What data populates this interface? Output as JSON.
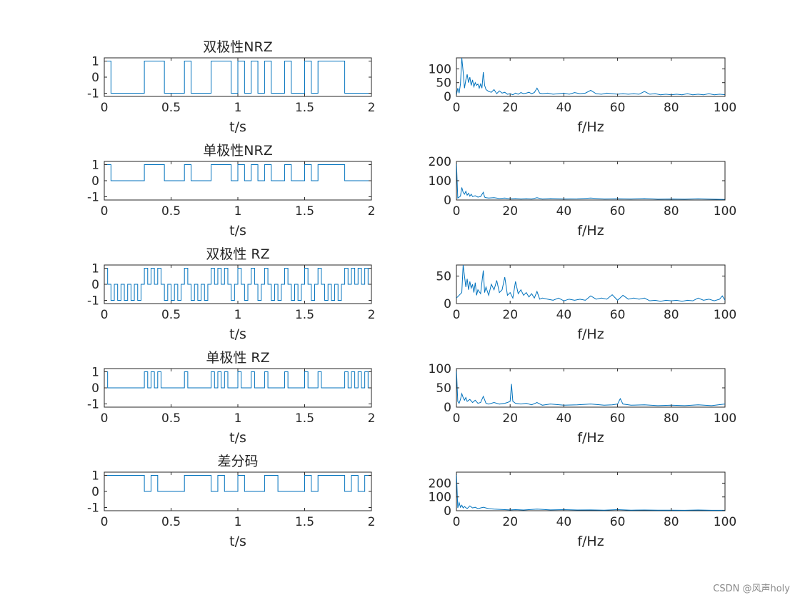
{
  "watermark": "CSDN @风声holy",
  "colors": {
    "trace": "#0072bd",
    "axis": "#262626",
    "background": "#ffffff"
  },
  "time_axis": {
    "xlabel": "t/s",
    "xlim": [
      0,
      2
    ],
    "xticks": [
      "0",
      "0.5",
      "1",
      "1.5",
      "2"
    ],
    "x": [
      0,
      0.5,
      1,
      1.5,
      2
    ]
  },
  "freq_axis": {
    "xlabel": "f/Hz",
    "xlim": [
      0,
      100
    ],
    "xticks": [
      "0",
      "20",
      "40",
      "60",
      "80",
      "100"
    ],
    "x": [
      0,
      20,
      40,
      60,
      80,
      100
    ]
  },
  "chart_data": [
    {
      "type": "line",
      "id": "bipolar-nrz-time",
      "title": "双极性NRZ",
      "xlabel": "t/s",
      "xlim": [
        0,
        2
      ],
      "ylim": [
        -1.2,
        1.2
      ],
      "yticks": [
        -1,
        0,
        1
      ],
      "ytick_labels": [
        "-1",
        "0",
        "1"
      ],
      "step_x": [
        0,
        0.05,
        0.3,
        0.45,
        0.6,
        0.65,
        0.8,
        0.95,
        1.0,
        1.05,
        1.1,
        1.15,
        1.2,
        1.25,
        1.35,
        1.4,
        1.5,
        1.55,
        1.6,
        1.8,
        2.0
      ],
      "step_y": [
        1,
        -1,
        1,
        -1,
        1,
        -1,
        1,
        -1,
        1,
        -1,
        1,
        -1,
        1,
        -1,
        1,
        -1,
        1,
        -1,
        1,
        -1,
        1
      ]
    },
    {
      "type": "line",
      "id": "bipolar-nrz-spectrum",
      "title": "",
      "xlabel": "f/Hz",
      "xlim": [
        0,
        100
      ],
      "ylim": [
        0,
        140
      ],
      "yticks": [
        0,
        50,
        100
      ],
      "ytick_labels": [
        "0",
        "50",
        "100"
      ],
      "x": [
        0,
        0.5,
        1,
        1.5,
        2,
        2.5,
        3,
        3.5,
        4,
        4.5,
        5,
        5.5,
        6,
        6.5,
        7,
        7.5,
        8,
        8.5,
        9,
        9.5,
        10,
        10.5,
        11,
        12,
        13,
        14,
        15,
        16,
        17,
        18,
        19,
        20,
        21,
        22,
        23,
        24,
        25,
        26,
        27,
        28,
        29,
        30,
        31,
        32,
        34,
        36,
        38,
        40,
        42,
        44,
        46,
        48,
        50,
        52,
        54,
        56,
        58,
        60,
        62,
        64,
        66,
        68,
        70,
        72,
        74,
        76,
        78,
        80,
        82,
        84,
        86,
        88,
        90,
        92,
        94,
        96,
        98,
        100
      ],
      "y": [
        5,
        30,
        12,
        45,
        140,
        90,
        30,
        60,
        80,
        50,
        70,
        40,
        60,
        35,
        50,
        40,
        45,
        30,
        45,
        30,
        88,
        40,
        25,
        18,
        15,
        25,
        10,
        20,
        12,
        15,
        8,
        10,
        6,
        12,
        8,
        14,
        10,
        12,
        15,
        10,
        14,
        30,
        12,
        10,
        12,
        8,
        10,
        12,
        8,
        14,
        10,
        12,
        22,
        10,
        8,
        12,
        10,
        8,
        10,
        8,
        10,
        8,
        18,
        8,
        10,
        6,
        8,
        6,
        8,
        6,
        10,
        6,
        8,
        6,
        10,
        6,
        8,
        6
      ]
    },
    {
      "type": "line",
      "id": "unipolar-nrz-time",
      "title": "单极性NRZ",
      "xlabel": "t/s",
      "xlim": [
        0,
        2
      ],
      "ylim": [
        -1.2,
        1.2
      ],
      "yticks": [
        -1,
        0,
        1
      ],
      "ytick_labels": [
        "-1",
        "0",
        "1"
      ],
      "step_x": [
        0,
        0.05,
        0.3,
        0.45,
        0.6,
        0.65,
        0.8,
        0.95,
        1.0,
        1.05,
        1.1,
        1.15,
        1.2,
        1.25,
        1.35,
        1.4,
        1.5,
        1.55,
        1.6,
        1.8,
        2.0
      ],
      "step_y": [
        1,
        0,
        1,
        0,
        1,
        0,
        1,
        0,
        1,
        0,
        1,
        0,
        1,
        0,
        1,
        0,
        1,
        0,
        1,
        0,
        1
      ]
    },
    {
      "type": "line",
      "id": "unipolar-nrz-spectrum",
      "title": "",
      "xlabel": "f/Hz",
      "xlim": [
        0,
        100
      ],
      "ylim": [
        0,
        200
      ],
      "yticks": [
        0,
        100,
        200
      ],
      "ytick_labels": [
        "0",
        "100",
        "200"
      ],
      "x": [
        0,
        0.5,
        1,
        1.5,
        2,
        2.5,
        3,
        3.5,
        4,
        4.5,
        5,
        5.5,
        6,
        7,
        8,
        9,
        10,
        10.5,
        11,
        12,
        14,
        16,
        18,
        20,
        22,
        24,
        26,
        28,
        30,
        32,
        35,
        40,
        45,
        50,
        55,
        60,
        65,
        70,
        75,
        80,
        85,
        90,
        95,
        100
      ],
      "y": [
        200,
        10,
        15,
        20,
        65,
        40,
        30,
        45,
        25,
        35,
        20,
        30,
        18,
        22,
        15,
        18,
        40,
        15,
        12,
        10,
        12,
        8,
        10,
        6,
        8,
        5,
        7,
        5,
        12,
        5,
        8,
        5,
        6,
        10,
        5,
        6,
        5,
        8,
        4,
        5,
        4,
        6,
        4,
        3
      ]
    },
    {
      "type": "line",
      "id": "bipolar-rz-time",
      "title": "双极性 RZ",
      "xlabel": "t/s",
      "xlim": [
        0,
        2
      ],
      "ylim": [
        -1.2,
        1.2
      ],
      "yticks": [
        -1,
        0,
        1
      ],
      "ytick_labels": [
        "-1",
        "0",
        "1"
      ],
      "step_x": [
        0,
        0.025,
        0.05,
        0.075,
        0.1,
        0.125,
        0.15,
        0.175,
        0.2,
        0.225,
        0.25,
        0.275,
        0.3,
        0.325,
        0.35,
        0.375,
        0.4,
        0.425,
        0.45,
        0.475,
        0.5,
        0.525,
        0.55,
        0.575,
        0.6,
        0.625,
        0.65,
        0.675,
        0.7,
        0.725,
        0.75,
        0.775,
        0.8,
        0.825,
        0.85,
        0.875,
        0.9,
        0.925,
        0.95,
        0.975,
        1.0,
        1.025,
        1.05,
        1.075,
        1.1,
        1.125,
        1.15,
        1.175,
        1.2,
        1.225,
        1.25,
        1.275,
        1.3,
        1.325,
        1.35,
        1.375,
        1.4,
        1.425,
        1.45,
        1.475,
        1.5,
        1.525,
        1.55,
        1.575,
        1.6,
        1.625,
        1.65,
        1.675,
        1.7,
        1.725,
        1.75,
        1.775,
        1.8,
        1.825,
        1.85,
        1.875,
        1.9,
        1.925,
        1.95,
        1.975,
        2.0
      ],
      "step_y": [
        1,
        0,
        -1,
        0,
        -1,
        0,
        -1,
        0,
        -1,
        0,
        -1,
        0,
        1,
        0,
        1,
        0,
        1,
        0,
        -1,
        0,
        -1,
        0,
        -1,
        0,
        1,
        0,
        -1,
        0,
        -1,
        0,
        -1,
        0,
        1,
        0,
        1,
        0,
        1,
        0,
        -1,
        0,
        1,
        0,
        -1,
        0,
        1,
        0,
        -1,
        0,
        1,
        0,
        -1,
        0,
        -1,
        0,
        1,
        0,
        -1,
        0,
        -1,
        0,
        1,
        0,
        -1,
        0,
        1,
        0,
        -1,
        0,
        -1,
        0,
        -1,
        0,
        1,
        0,
        1,
        0,
        1,
        0,
        1,
        0,
        1
      ]
    },
    {
      "type": "line",
      "id": "bipolar-rz-spectrum",
      "title": "",
      "xlabel": "f/Hz",
      "xlim": [
        0,
        100
      ],
      "ylim": [
        0,
        70
      ],
      "yticks": [
        0,
        50
      ],
      "ytick_labels": [
        "0",
        "50"
      ],
      "x": [
        0,
        1,
        2,
        2.5,
        3,
        3.5,
        4,
        4.5,
        5,
        5.5,
        6,
        6.5,
        7,
        7.5,
        8,
        9,
        10,
        10.5,
        11,
        12,
        13,
        14,
        15,
        16,
        17,
        18,
        19,
        20,
        21,
        22,
        23,
        24,
        25,
        26,
        27,
        28,
        29,
        30,
        31,
        32,
        34,
        36,
        38,
        40,
        42,
        44,
        46,
        48,
        50,
        52,
        54,
        56,
        58,
        60,
        62,
        64,
        66,
        68,
        70,
        72,
        74,
        76,
        78,
        80,
        82,
        84,
        86,
        88,
        90,
        92,
        94,
        96,
        98,
        99,
        100
      ],
      "y": [
        10,
        15,
        20,
        72,
        50,
        30,
        45,
        25,
        40,
        28,
        35,
        20,
        38,
        15,
        25,
        18,
        60,
        20,
        30,
        15,
        35,
        25,
        42,
        20,
        25,
        48,
        15,
        20,
        10,
        40,
        18,
        25,
        15,
        20,
        12,
        18,
        10,
        22,
        8,
        10,
        8,
        6,
        10,
        5,
        8,
        6,
        8,
        6,
        14,
        8,
        10,
        8,
        16,
        6,
        15,
        8,
        10,
        8,
        10,
        5,
        6,
        4,
        6,
        5,
        6,
        4,
        6,
        5,
        10,
        6,
        8,
        5,
        8,
        14,
        6
      ]
    },
    {
      "type": "line",
      "id": "unipolar-rz-time",
      "title": "单极性 RZ",
      "xlabel": "t/s",
      "xlim": [
        0,
        2
      ],
      "ylim": [
        -1.2,
        1.2
      ],
      "yticks": [
        -1,
        0,
        1
      ],
      "ytick_labels": [
        "-1",
        "0",
        "1"
      ],
      "step_x": [
        0,
        0.025,
        0.3,
        0.325,
        0.35,
        0.375,
        0.4,
        0.425,
        0.6,
        0.625,
        0.8,
        0.825,
        0.85,
        0.875,
        0.9,
        0.925,
        1.0,
        1.025,
        1.1,
        1.125,
        1.2,
        1.225,
        1.35,
        1.375,
        1.5,
        1.525,
        1.6,
        1.625,
        1.8,
        1.825,
        1.85,
        1.875,
        1.9,
        1.925,
        1.95,
        1.975,
        2.0
      ],
      "step_y": [
        1,
        0,
        1,
        0,
        1,
        0,
        1,
        0,
        1,
        0,
        1,
        0,
        1,
        0,
        1,
        0,
        1,
        0,
        1,
        0,
        1,
        0,
        1,
        0,
        1,
        0,
        1,
        0,
        1,
        0,
        1,
        0,
        1,
        0,
        1,
        0,
        1
      ]
    },
    {
      "type": "line",
      "id": "unipolar-rz-spectrum",
      "title": "",
      "xlabel": "f/Hz",
      "xlim": [
        0,
        100
      ],
      "ylim": [
        0,
        100
      ],
      "yticks": [
        0,
        50,
        100
      ],
      "ytick_labels": [
        "0",
        "50",
        "100"
      ],
      "x": [
        0,
        0.5,
        1,
        1.5,
        2,
        2.5,
        3,
        3.5,
        4,
        5,
        6,
        7,
        8,
        9,
        10,
        11,
        12,
        14,
        16,
        18,
        19,
        20,
        20.5,
        21,
        22,
        24,
        26,
        28,
        30,
        32,
        35,
        40,
        45,
        50,
        55,
        58,
        60,
        61,
        62,
        65,
        70,
        75,
        80,
        85,
        90,
        95,
        100
      ],
      "y": [
        100,
        15,
        10,
        20,
        35,
        25,
        18,
        25,
        15,
        20,
        12,
        18,
        10,
        12,
        28,
        10,
        8,
        12,
        8,
        10,
        12,
        15,
        60,
        15,
        10,
        8,
        10,
        6,
        12,
        5,
        8,
        5,
        6,
        8,
        5,
        6,
        8,
        22,
        8,
        5,
        6,
        4,
        5,
        4,
        6,
        4,
        8
      ]
    },
    {
      "type": "line",
      "id": "differential-code-time",
      "title": "差分码",
      "xlabel": "t/s",
      "xlim": [
        0,
        2
      ],
      "ylim": [
        -1.2,
        1.2
      ],
      "yticks": [
        -1,
        0,
        1
      ],
      "ytick_labels": [
        "-1",
        "0",
        "1"
      ],
      "step_x": [
        0,
        0.3,
        0.35,
        0.4,
        0.6,
        0.8,
        0.85,
        0.9,
        1.0,
        1.05,
        1.2,
        1.3,
        1.5,
        1.55,
        1.6,
        1.8,
        1.85,
        1.9,
        1.95,
        2.0
      ],
      "step_y": [
        1,
        0,
        1,
        0,
        1,
        0,
        1,
        0,
        1,
        0,
        1,
        0,
        1,
        0,
        1,
        0,
        1,
        0,
        1,
        1
      ]
    },
    {
      "type": "line",
      "id": "differential-code-spectrum",
      "title": "",
      "xlabel": "f/Hz",
      "xlim": [
        0,
        100
      ],
      "ylim": [
        0,
        280
      ],
      "yticks": [
        0,
        100,
        200
      ],
      "ytick_labels": [
        "0",
        "100",
        "200"
      ],
      "x": [
        0,
        0.5,
        1,
        1.5,
        2,
        2.5,
        3,
        4,
        5,
        6,
        7,
        8,
        9,
        10,
        12,
        14,
        16,
        18,
        20,
        22,
        25,
        30,
        35,
        40,
        45,
        50,
        55,
        60,
        65,
        70,
        75,
        80,
        85,
        90,
        95,
        100
      ],
      "y": [
        280,
        20,
        60,
        25,
        40,
        20,
        30,
        15,
        35,
        20,
        25,
        15,
        20,
        25,
        15,
        12,
        10,
        8,
        6,
        8,
        5,
        12,
        6,
        8,
        5,
        6,
        4,
        8,
        4,
        5,
        4,
        4,
        3,
        5,
        3,
        3
      ]
    }
  ]
}
